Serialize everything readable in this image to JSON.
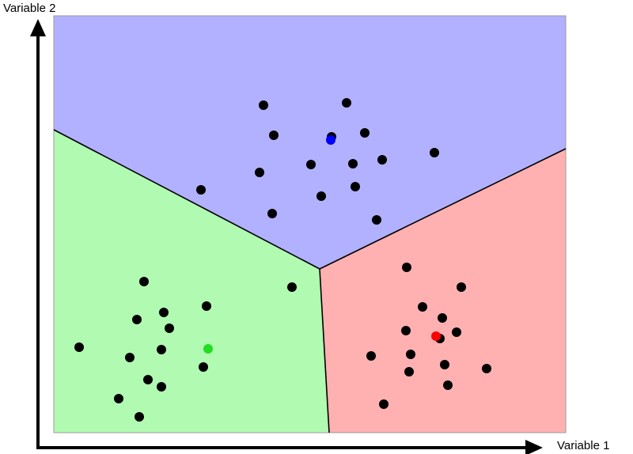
{
  "axes": {
    "x_label": "Variable 1",
    "y_label": "Variable 2"
  },
  "colors": {
    "region_top": "#b1b1ff",
    "region_left": "#b1fab1",
    "region_right": "#ffb1b1",
    "points": "#000000",
    "centroid_top": "#0000ff",
    "centroid_left": "#22dd22",
    "centroid_right": "#ff0000"
  }
}
